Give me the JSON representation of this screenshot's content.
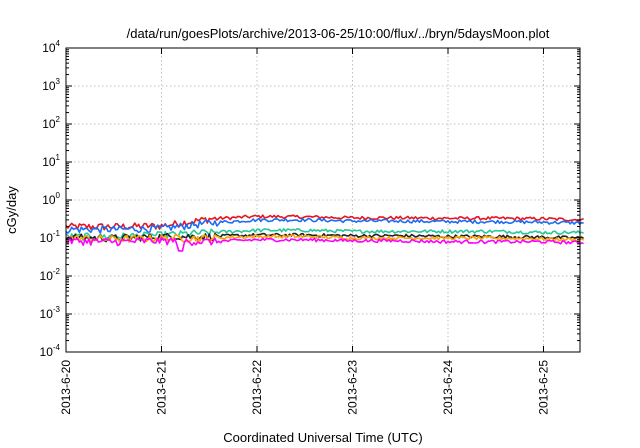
{
  "chart_data": {
    "type": "line",
    "title": "/data/run/goesPlots/archive/2013-06-25/10:00/flux/../bryn/5daysMoon.plot",
    "xlabel": "Coordinated Universal Time (UTC)",
    "ylabel": "cGy/day",
    "yscale": "log",
    "ylim": [
      0.0001,
      10000
    ],
    "y_ticks": [
      {
        "base": "10",
        "exp": "4",
        "value": 10000
      },
      {
        "base": "10",
        "exp": "3",
        "value": 1000
      },
      {
        "base": "10",
        "exp": "2",
        "value": 100
      },
      {
        "base": "10",
        "exp": "1",
        "value": 10
      },
      {
        "base": "10",
        "exp": "0",
        "value": 1
      },
      {
        "base": "10",
        "exp": "-1",
        "value": 0.1
      },
      {
        "base": "10",
        "exp": "-2",
        "value": 0.01
      },
      {
        "base": "10",
        "exp": "-3",
        "value": 0.001
      },
      {
        "base": "10",
        "exp": "-4",
        "value": 0.0001
      }
    ],
    "x_range": [
      "2013-06-20",
      "2013-06-25 10:00"
    ],
    "x_ticks": [
      "2013-6-20",
      "2013-6-21",
      "2013-6-22",
      "2013-6-23",
      "2013-6-24",
      "2013-6-25"
    ],
    "grid": true,
    "series": [
      {
        "color": "#e8141e",
        "values": [
          0.2,
          0.2,
          0.21,
          0.32,
          0.37,
          0.36,
          0.34,
          0.34,
          0.33,
          0.33,
          0.32,
          0.3
        ]
      },
      {
        "color": "#1a6ef5",
        "values": [
          0.17,
          0.17,
          0.18,
          0.25,
          0.3,
          0.3,
          0.28,
          0.28,
          0.27,
          0.27,
          0.26,
          0.25
        ]
      },
      {
        "color": "#26c79a",
        "values": [
          0.11,
          0.11,
          0.12,
          0.14,
          0.16,
          0.16,
          0.15,
          0.15,
          0.15,
          0.15,
          0.14,
          0.14
        ]
      },
      {
        "color": "#222222",
        "values": [
          0.105,
          0.1,
          0.11,
          0.11,
          0.12,
          0.12,
          0.115,
          0.115,
          0.11,
          0.11,
          0.105,
          0.1
        ]
      },
      {
        "color": "#ffa500",
        "values": [
          0.1,
          0.095,
          0.1,
          0.1,
          0.11,
          0.11,
          0.1,
          0.1,
          0.1,
          0.1,
          0.095,
          0.09
        ]
      },
      {
        "color": "#ff00ff",
        "values": [
          0.085,
          0.08,
          0.085,
          0.08,
          0.09,
          0.09,
          0.085,
          0.085,
          0.08,
          0.08,
          0.08,
          0.075
        ]
      }
    ],
    "x_points_days": [
      0,
      0.5,
      1,
      1.5,
      2,
      2.5,
      3,
      3.5,
      4,
      4.5,
      5,
      5.42
    ]
  }
}
